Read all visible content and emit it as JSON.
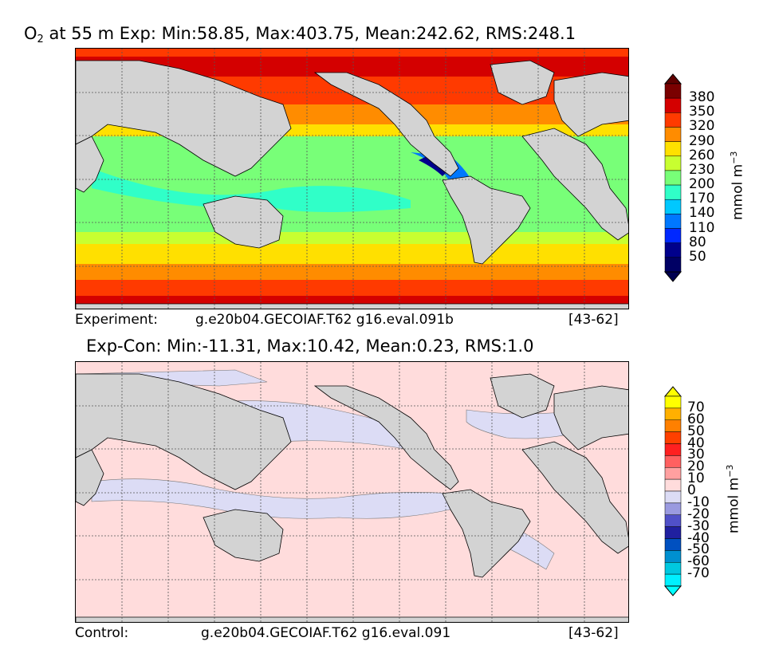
{
  "top": {
    "title_prefix": "O",
    "title_sub": "2",
    "title_rest": " at 55 m Exp: Min:58.85, Max:403.75, Mean:242.62, RMS:248.1",
    "caption_left": "Experiment:",
    "caption_mid": "g.e20b04.GECOIAF.T62 g16.eval.091b",
    "caption_right": "[43-62]",
    "units_base": "mmol m",
    "units_exp": "−3",
    "colorbar": {
      "labels": [
        "380",
        "350",
        "320",
        "290",
        "260",
        "230",
        "200",
        "170",
        "140",
        "110",
        "80",
        "50"
      ],
      "colors": [
        "#7a0000",
        "#d40000",
        "#ff3a00",
        "#ff8c00",
        "#ffe000",
        "#c8ff30",
        "#78ff78",
        "#30ffc8",
        "#00c8ff",
        "#0078ff",
        "#0028ff",
        "#00008c",
        "#000064"
      ],
      "over_color": "#600000",
      "under_color": "#000050"
    }
  },
  "bottom": {
    "title": "Exp-Con: Min:-11.31, Max:10.42, Mean:0.23, RMS:1.0",
    "caption_left": "Control:",
    "caption_mid": "g.e20b04.GECOIAF.T62 g16.eval.091",
    "caption_right": "[43-62]",
    "units_base": "mmol m",
    "units_exp": "−3",
    "colorbar": {
      "labels": [
        "70",
        "60",
        "50",
        "40",
        "30",
        "20",
        "10",
        "0",
        "-10",
        "-20",
        "-30",
        "-40",
        "-50",
        "-60",
        "-70"
      ],
      "colors": [
        "#ffff00",
        "#ffb000",
        "#ff8000",
        "#ff4000",
        "#ff2020",
        "#ff6060",
        "#ffa0a0",
        "#ffdcdc",
        "#dcdcf5",
        "#9a9ae0",
        "#5050c8",
        "#2020a0",
        "#0050c0",
        "#0090d0",
        "#00c8e0",
        "#00f0ff"
      ],
      "over_color": "#ffff00",
      "under_color": "#00ffff"
    }
  }
}
